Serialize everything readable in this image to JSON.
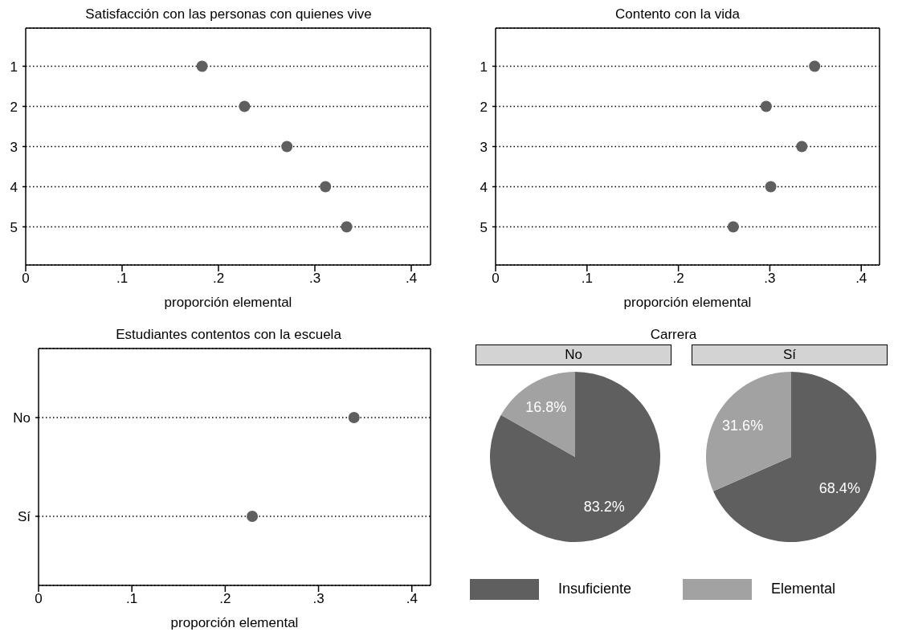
{
  "chart_data": [
    {
      "type": "scatter",
      "orientation": "horizontal",
      "title": "Satisfacción con las personas con quienes vive",
      "categories": [
        "1",
        "2",
        "3",
        "4",
        "5"
      ],
      "values": [
        0.183,
        0.227,
        0.271,
        0.311,
        0.333
      ],
      "color": "#5f5f5f",
      "marker": "circle",
      "grid": "y",
      "xlim": [
        0,
        0.42
      ],
      "xticks": [
        {
          "value": 0,
          "label": "0"
        },
        {
          "value": 0.1,
          "label": ".1"
        },
        {
          "value": 0.2,
          "label": ".2"
        },
        {
          "value": 0.3,
          "label": ".3"
        },
        {
          "value": 0.4,
          "label": ".4"
        }
      ],
      "xlabel": "proporción elemental"
    },
    {
      "type": "scatter",
      "orientation": "horizontal",
      "title": "Contento con la vida",
      "categories": [
        "1",
        "2",
        "3",
        "4",
        "5"
      ],
      "values": [
        0.349,
        0.296,
        0.335,
        0.301,
        0.26
      ],
      "color": "#5f5f5f",
      "marker": "circle",
      "grid": "y",
      "xlim": [
        0,
        0.42
      ],
      "xticks": [
        {
          "value": 0,
          "label": "0"
        },
        {
          "value": 0.1,
          "label": ".1"
        },
        {
          "value": 0.2,
          "label": ".2"
        },
        {
          "value": 0.3,
          "label": ".3"
        },
        {
          "value": 0.4,
          "label": ".4"
        }
      ],
      "xlabel": "proporción elemental"
    },
    {
      "type": "scatter",
      "orientation": "horizontal",
      "title": "Estudiantes contentos con la escuela",
      "categories": [
        "No",
        "Sí"
      ],
      "values": [
        0.338,
        0.229
      ],
      "color": "#5f5f5f",
      "marker": "circle",
      "grid": "y",
      "xlim": [
        0,
        0.42
      ],
      "xticks": [
        {
          "value": 0,
          "label": "0"
        },
        {
          "value": 0.1,
          "label": ".1"
        },
        {
          "value": 0.2,
          "label": ".2"
        },
        {
          "value": 0.3,
          "label": ".3"
        },
        {
          "value": 0.4,
          "label": ".4"
        }
      ],
      "xlabel": "proporción elemental"
    },
    {
      "type": "pie",
      "title": "Carrera",
      "categories": [
        "Insuficiente",
        "Elemental"
      ],
      "colors": [
        "#5f5f5f",
        "#a2a2a2"
      ],
      "legend": "bottom",
      "series": [
        {
          "name": "No",
          "values": [
            83.2,
            16.8
          ],
          "value_labels": [
            "83.2%",
            "16.8%"
          ]
        },
        {
          "name": "Sí",
          "values": [
            68.4,
            31.6
          ],
          "value_labels": [
            "68.4%",
            "31.6%"
          ]
        }
      ]
    }
  ]
}
